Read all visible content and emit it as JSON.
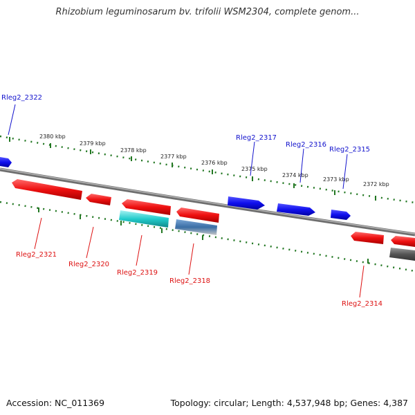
{
  "title": "Rhizobium leguminosarum bv. trifolii WSM2304, complete genom...",
  "footer": {
    "accession": "Accession: NC_011369",
    "summary": "Topology: circular; Length: 4,537,948 bp; Genes: 4,387"
  },
  "colors": {
    "forward_gene": "#1010ee",
    "reverse_gene": "#ee1010",
    "rna_gene": "#22cccc",
    "other_gene": "#4a7fb8",
    "pseudo_gene": "#666666",
    "tick": "#227722",
    "backbone": "#808080"
  },
  "scale_labels": [
    "2380 kbp",
    "2379 kbp",
    "2378 kbp",
    "2377 kbp",
    "2376 kbp",
    "2375 kbp",
    "2374 kbp",
    "2373 kbp",
    "2372 kbp"
  ],
  "gene_labels": {
    "top": [
      "Rleg2_2322",
      "Rleg2_2317",
      "Rleg2_2316",
      "Rleg2_2315"
    ],
    "bottom": [
      "Rleg2_2321",
      "Rleg2_2320",
      "Rleg2_2319",
      "Rleg2_2318",
      "Rleg2_2314"
    ]
  }
}
